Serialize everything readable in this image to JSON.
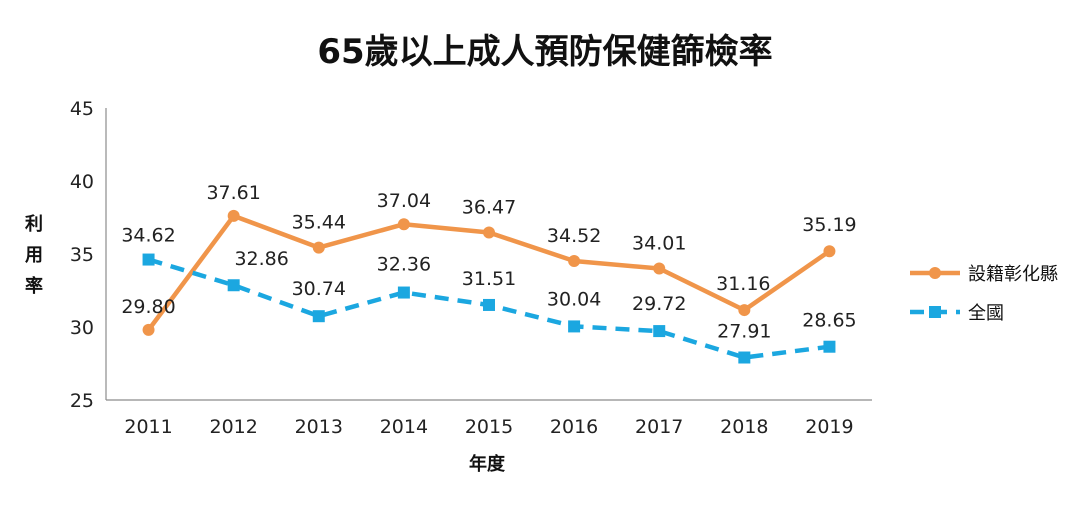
{
  "chart_data": {
    "type": "line",
    "title": "65歲以上成人預防保健篩檢率",
    "xlabel": "年度",
    "ylabel": "利用率",
    "categories": [
      "2011",
      "2012",
      "2013",
      "2014",
      "2015",
      "2016",
      "2017",
      "2018",
      "2019"
    ],
    "ylim": [
      25,
      45
    ],
    "yticks": [
      25,
      30,
      35,
      40,
      45
    ],
    "legend_position": "right",
    "series": [
      {
        "name": "設籍彰化縣",
        "color": "#F0954A",
        "marker": "circle",
        "dash": false,
        "values": [
          29.8,
          37.61,
          35.44,
          37.04,
          36.47,
          34.52,
          34.01,
          31.16,
          35.19
        ],
        "labels": [
          "29.80",
          "37.61",
          "35.44",
          "37.04",
          "36.47",
          "34.52",
          "34.01",
          "31.16",
          "35.19"
        ]
      },
      {
        "name": "全國",
        "color": "#1BA7E0",
        "marker": "square",
        "dash": true,
        "values": [
          34.62,
          32.86,
          30.74,
          32.36,
          31.51,
          30.04,
          29.72,
          27.91,
          28.65
        ],
        "labels": [
          "34.62",
          "32.86",
          "30.74",
          "32.36",
          "31.51",
          "30.04",
          "29.72",
          "27.91",
          "28.65"
        ]
      }
    ]
  }
}
